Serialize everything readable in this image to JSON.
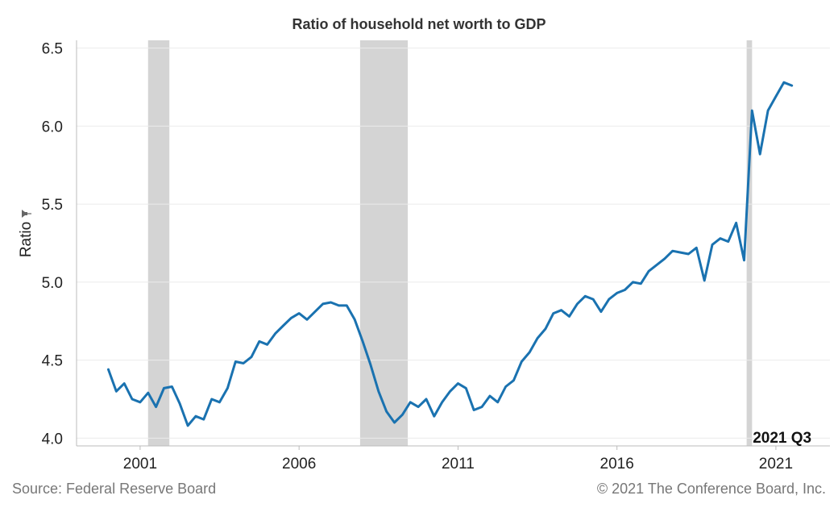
{
  "chart_data": {
    "type": "line",
    "title": "Ratio of household net worth to GDP",
    "xlabel": "",
    "ylabel": "Ratio",
    "ylabel_icon": "pin-icon",
    "xlim": [
      1999.0,
      2022.7
    ],
    "ylim": [
      3.95,
      6.55
    ],
    "x_ticks": [
      2001,
      2006,
      2011,
      2016,
      2021
    ],
    "x_tick_labels": [
      "2001",
      "2006",
      "2011",
      "2016",
      "2021"
    ],
    "y_ticks": [
      4.0,
      4.5,
      5.0,
      5.5,
      6.0,
      6.5
    ],
    "y_tick_labels": [
      "4.0",
      "4.5",
      "5.0",
      "5.5",
      "6.0",
      "6.5"
    ],
    "grid": true,
    "legend": "none",
    "recessions": [
      {
        "start": 2001.25,
        "end": 2001.92
      },
      {
        "start": 2007.92,
        "end": 2009.42
      },
      {
        "start": 2020.08,
        "end": 2020.25
      }
    ],
    "annotation": {
      "text": "2021 Q3",
      "x": 2021.5
    },
    "series": [
      {
        "x": [
          2000.0,
          2000.25,
          2000.5,
          2000.75,
          2001.0,
          2001.25,
          2001.5,
          2001.75,
          2002.0,
          2002.25,
          2002.5,
          2002.75,
          2003.0,
          2003.25,
          2003.5,
          2003.75,
          2004.0,
          2004.25,
          2004.5,
          2004.75,
          2005.0,
          2005.25,
          2005.5,
          2005.75,
          2006.0,
          2006.25,
          2006.5,
          2006.75,
          2007.0,
          2007.25,
          2007.5,
          2007.75,
          2008.0,
          2008.25,
          2008.5,
          2008.75,
          2009.0,
          2009.25,
          2009.5,
          2009.75,
          2010.0,
          2010.25,
          2010.5,
          2010.75,
          2011.0,
          2011.25,
          2011.5,
          2011.75,
          2012.0,
          2012.25,
          2012.5,
          2012.75,
          2013.0,
          2013.25,
          2013.5,
          2013.75,
          2014.0,
          2014.25,
          2014.5,
          2014.75,
          2015.0,
          2015.25,
          2015.5,
          2015.75,
          2016.0,
          2016.25,
          2016.5,
          2016.75,
          2017.0,
          2017.25,
          2017.5,
          2017.75,
          2018.0,
          2018.25,
          2018.5,
          2018.75,
          2019.0,
          2019.25,
          2019.5,
          2019.75,
          2020.0,
          2020.25,
          2020.5,
          2020.75,
          2021.0,
          2021.25,
          2021.5
        ],
        "y": [
          4.44,
          4.3,
          4.35,
          4.25,
          4.23,
          4.29,
          4.2,
          4.32,
          4.33,
          4.22,
          4.08,
          4.14,
          4.12,
          4.25,
          4.23,
          4.32,
          4.49,
          4.48,
          4.52,
          4.62,
          4.6,
          4.67,
          4.72,
          4.77,
          4.8,
          4.76,
          4.81,
          4.86,
          4.87,
          4.85,
          4.85,
          4.76,
          4.62,
          4.47,
          4.3,
          4.17,
          4.1,
          4.15,
          4.23,
          4.2,
          4.25,
          4.14,
          4.23,
          4.3,
          4.35,
          4.32,
          4.18,
          4.2,
          4.27,
          4.23,
          4.33,
          4.37,
          4.49,
          4.55,
          4.64,
          4.7,
          4.8,
          4.82,
          4.78,
          4.86,
          4.91,
          4.89,
          4.81,
          4.89,
          4.93,
          4.95,
          5.0,
          4.99,
          5.07,
          5.11,
          5.15,
          5.2,
          5.19,
          5.18,
          5.22,
          5.01,
          5.24,
          5.28,
          5.26,
          5.38,
          5.14,
          6.1,
          5.82,
          6.1,
          6.19,
          6.28,
          6.26
        ],
        "color": "#1a72b0"
      }
    ]
  },
  "footer": {
    "source": "Source: Federal Reserve Board",
    "copyright": "© 2021 The Conference Board, Inc."
  }
}
